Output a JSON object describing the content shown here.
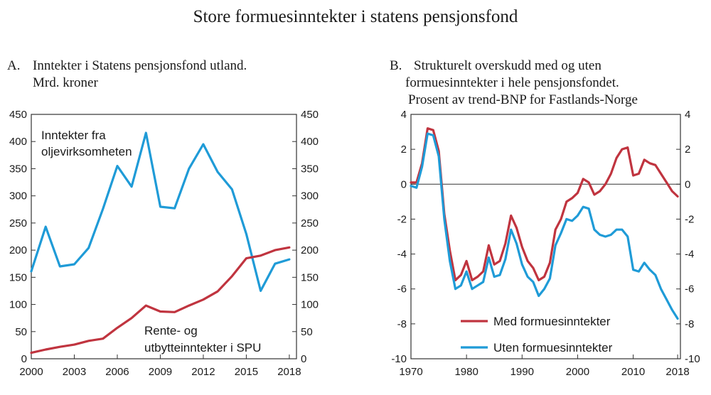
{
  "title": "Store formuesinntekter i statens pensjonsfond",
  "colors": {
    "red": "#c0343f",
    "blue": "#1f9bd7",
    "axis": "#333333",
    "text": "#1a1a1a"
  },
  "chart_data": [
    {
      "type": "line",
      "panel_label": "A.",
      "title_lines": [
        "Inntekter i Statens pensjonsfond utland.",
        "Mrd. kroner"
      ],
      "xlabel": "",
      "ylabel": "",
      "xlim": [
        2000,
        2018.5
      ],
      "ylim": [
        0,
        450
      ],
      "x_ticks": [
        2000,
        2003,
        2006,
        2009,
        2012,
        2015,
        2018
      ],
      "y_ticks": [
        0,
        50,
        100,
        150,
        200,
        250,
        300,
        350,
        400,
        450
      ],
      "grid": false,
      "series": [
        {
          "name_lines": [
            "Inntekter fra",
            "oljevirksomheten"
          ],
          "color": "blue",
          "x": [
            2000,
            2001,
            2002,
            2003,
            2004,
            2005,
            2006,
            2007,
            2008,
            2009,
            2010,
            2011,
            2012,
            2013,
            2014,
            2015,
            2016,
            2017,
            2018
          ],
          "values": [
            161,
            243,
            170,
            174,
            204,
            276,
            355,
            317,
            416,
            280,
            277,
            350,
            395,
            344,
            312,
            230,
            125,
            175,
            183
          ]
        },
        {
          "name_lines": [
            "Rente- og",
            "utbytteinntekter i SPU"
          ],
          "color": "red",
          "x": [
            2000,
            2001,
            2002,
            2003,
            2004,
            2005,
            2006,
            2007,
            2008,
            2009,
            2010,
            2011,
            2012,
            2013,
            2014,
            2015,
            2016,
            2017,
            2018
          ],
          "values": [
            11,
            17,
            22,
            26,
            33,
            37,
            57,
            75,
            98,
            87,
            86,
            98,
            109,
            124,
            152,
            185,
            190,
            200,
            205
          ]
        }
      ]
    },
    {
      "type": "line",
      "panel_label": "B.",
      "title_lines": [
        "Strukturelt overskudd med og uten",
        "formuesinntekter i hele pensjonsfondet.",
        "Prosent av trend-BNP for Fastlands-Norge"
      ],
      "xlabel": "",
      "ylabel": "",
      "xlim": [
        1970,
        2018.5
      ],
      "ylim": [
        -10,
        4
      ],
      "x_ticks": [
        1970,
        1980,
        1990,
        2000,
        2010,
        2018
      ],
      "y_ticks": [
        -10,
        -8,
        -6,
        -4,
        -2,
        0,
        2,
        4
      ],
      "zero_line": true,
      "grid": false,
      "legend": "bottom-right",
      "series": [
        {
          "name": "Med formuesinntekter",
          "color": "red",
          "x": [
            1970,
            1971,
            1972,
            1973,
            1974,
            1975,
            1976,
            1977,
            1978,
            1979,
            1980,
            1981,
            1982,
            1983,
            1984,
            1985,
            1986,
            1987,
            1988,
            1989,
            1990,
            1991,
            1992,
            1993,
            1994,
            1995,
            1996,
            1997,
            1998,
            1999,
            2000,
            2001,
            2002,
            2003,
            2004,
            2005,
            2006,
            2007,
            2008,
            2009,
            2010,
            2011,
            2012,
            2013,
            2014,
            2015,
            2016,
            2017,
            2018
          ],
          "values": [
            0.1,
            0.1,
            1.2,
            3.2,
            3.1,
            1.9,
            -1.7,
            -3.8,
            -5.5,
            -5.2,
            -4.4,
            -5.5,
            -5.3,
            -5.0,
            -3.5,
            -4.6,
            -4.4,
            -3.4,
            -1.8,
            -2.5,
            -3.6,
            -4.4,
            -4.8,
            -5.5,
            -5.3,
            -4.5,
            -2.6,
            -2.0,
            -1.0,
            -0.8,
            -0.5,
            0.3,
            0.1,
            -0.6,
            -0.4,
            0.0,
            0.6,
            1.5,
            2.0,
            2.1,
            0.5,
            0.6,
            1.4,
            1.2,
            1.1,
            0.6,
            0.1,
            -0.4,
            -0.7
          ]
        },
        {
          "name": "Uten formuesinntekter",
          "color": "blue",
          "x": [
            1970,
            1971,
            1972,
            1973,
            1974,
            1975,
            1976,
            1977,
            1978,
            1979,
            1980,
            1981,
            1982,
            1983,
            1984,
            1985,
            1986,
            1987,
            1988,
            1989,
            1990,
            1991,
            1992,
            1993,
            1994,
            1995,
            1996,
            1997,
            1998,
            1999,
            2000,
            2001,
            2002,
            2003,
            2004,
            2005,
            2006,
            2007,
            2008,
            2009,
            2010,
            2011,
            2012,
            2013,
            2014,
            2015,
            2016,
            2017,
            2018
          ],
          "values": [
            -0.1,
            -0.2,
            1.0,
            2.9,
            2.8,
            1.6,
            -2.0,
            -4.4,
            -6.0,
            -5.8,
            -5.0,
            -6.0,
            -5.8,
            -5.6,
            -4.2,
            -5.3,
            -5.2,
            -4.3,
            -2.6,
            -3.4,
            -4.6,
            -5.3,
            -5.6,
            -6.4,
            -6.0,
            -5.4,
            -3.5,
            -2.8,
            -2.0,
            -2.1,
            -1.8,
            -1.3,
            -1.4,
            -2.6,
            -2.9,
            -3.0,
            -2.9,
            -2.6,
            -2.6,
            -3.0,
            -4.9,
            -5.0,
            -4.5,
            -4.9,
            -5.2,
            -6.0,
            -6.6,
            -7.2,
            -7.7
          ]
        }
      ]
    }
  ]
}
